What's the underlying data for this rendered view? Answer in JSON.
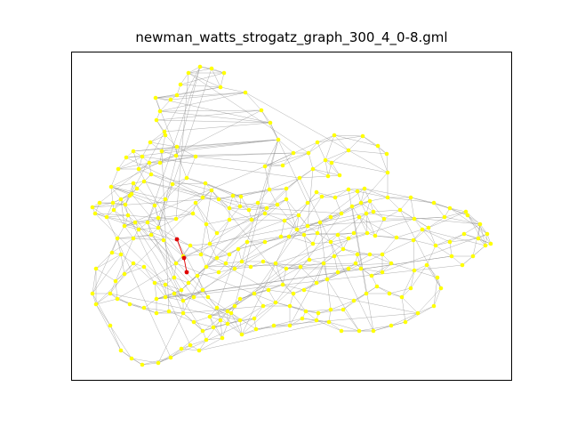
{
  "figure": {
    "title": "newman_watts_strogatz_graph_300_4_0-8.gml"
  },
  "colors": {
    "node": "#ffff00",
    "highlight": "#e00000",
    "edge": "#888888",
    "frame": "#000000",
    "background": "#ffffff"
  },
  "graph": {
    "type": "network",
    "node_count": 300,
    "highlighted_path_nodes": 3
  }
}
